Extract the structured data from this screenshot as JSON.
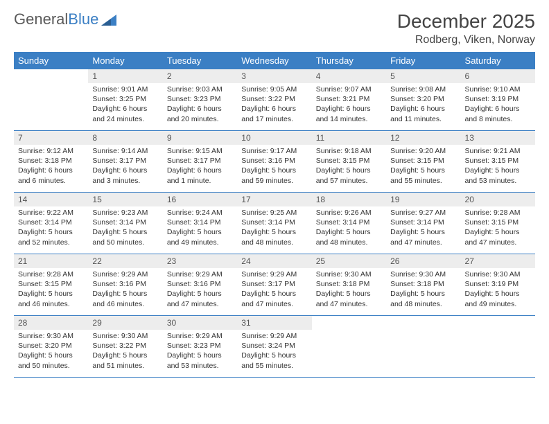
{
  "logo": {
    "text1": "General",
    "text2": "Blue"
  },
  "title": "December 2025",
  "location": "Rodberg, Viken, Norway",
  "colors": {
    "header_bg": "#3b7fc4",
    "header_text": "#ffffff",
    "daynum_bg": "#ededed",
    "border": "#3b7fc4"
  },
  "weekdays": [
    "Sunday",
    "Monday",
    "Tuesday",
    "Wednesday",
    "Thursday",
    "Friday",
    "Saturday"
  ],
  "weeks": [
    [
      {
        "n": "",
        "lines": []
      },
      {
        "n": "1",
        "lines": [
          "Sunrise: 9:01 AM",
          "Sunset: 3:25 PM",
          "Daylight: 6 hours and 24 minutes."
        ]
      },
      {
        "n": "2",
        "lines": [
          "Sunrise: 9:03 AM",
          "Sunset: 3:23 PM",
          "Daylight: 6 hours and 20 minutes."
        ]
      },
      {
        "n": "3",
        "lines": [
          "Sunrise: 9:05 AM",
          "Sunset: 3:22 PM",
          "Daylight: 6 hours and 17 minutes."
        ]
      },
      {
        "n": "4",
        "lines": [
          "Sunrise: 9:07 AM",
          "Sunset: 3:21 PM",
          "Daylight: 6 hours and 14 minutes."
        ]
      },
      {
        "n": "5",
        "lines": [
          "Sunrise: 9:08 AM",
          "Sunset: 3:20 PM",
          "Daylight: 6 hours and 11 minutes."
        ]
      },
      {
        "n": "6",
        "lines": [
          "Sunrise: 9:10 AM",
          "Sunset: 3:19 PM",
          "Daylight: 6 hours and 8 minutes."
        ]
      }
    ],
    [
      {
        "n": "7",
        "lines": [
          "Sunrise: 9:12 AM",
          "Sunset: 3:18 PM",
          "Daylight: 6 hours and 6 minutes."
        ]
      },
      {
        "n": "8",
        "lines": [
          "Sunrise: 9:14 AM",
          "Sunset: 3:17 PM",
          "Daylight: 6 hours and 3 minutes."
        ]
      },
      {
        "n": "9",
        "lines": [
          "Sunrise: 9:15 AM",
          "Sunset: 3:17 PM",
          "Daylight: 6 hours and 1 minute."
        ]
      },
      {
        "n": "10",
        "lines": [
          "Sunrise: 9:17 AM",
          "Sunset: 3:16 PM",
          "Daylight: 5 hours and 59 minutes."
        ]
      },
      {
        "n": "11",
        "lines": [
          "Sunrise: 9:18 AM",
          "Sunset: 3:15 PM",
          "Daylight: 5 hours and 57 minutes."
        ]
      },
      {
        "n": "12",
        "lines": [
          "Sunrise: 9:20 AM",
          "Sunset: 3:15 PM",
          "Daylight: 5 hours and 55 minutes."
        ]
      },
      {
        "n": "13",
        "lines": [
          "Sunrise: 9:21 AM",
          "Sunset: 3:15 PM",
          "Daylight: 5 hours and 53 minutes."
        ]
      }
    ],
    [
      {
        "n": "14",
        "lines": [
          "Sunrise: 9:22 AM",
          "Sunset: 3:14 PM",
          "Daylight: 5 hours and 52 minutes."
        ]
      },
      {
        "n": "15",
        "lines": [
          "Sunrise: 9:23 AM",
          "Sunset: 3:14 PM",
          "Daylight: 5 hours and 50 minutes."
        ]
      },
      {
        "n": "16",
        "lines": [
          "Sunrise: 9:24 AM",
          "Sunset: 3:14 PM",
          "Daylight: 5 hours and 49 minutes."
        ]
      },
      {
        "n": "17",
        "lines": [
          "Sunrise: 9:25 AM",
          "Sunset: 3:14 PM",
          "Daylight: 5 hours and 48 minutes."
        ]
      },
      {
        "n": "18",
        "lines": [
          "Sunrise: 9:26 AM",
          "Sunset: 3:14 PM",
          "Daylight: 5 hours and 48 minutes."
        ]
      },
      {
        "n": "19",
        "lines": [
          "Sunrise: 9:27 AM",
          "Sunset: 3:14 PM",
          "Daylight: 5 hours and 47 minutes."
        ]
      },
      {
        "n": "20",
        "lines": [
          "Sunrise: 9:28 AM",
          "Sunset: 3:15 PM",
          "Daylight: 5 hours and 47 minutes."
        ]
      }
    ],
    [
      {
        "n": "21",
        "lines": [
          "Sunrise: 9:28 AM",
          "Sunset: 3:15 PM",
          "Daylight: 5 hours and 46 minutes."
        ]
      },
      {
        "n": "22",
        "lines": [
          "Sunrise: 9:29 AM",
          "Sunset: 3:16 PM",
          "Daylight: 5 hours and 46 minutes."
        ]
      },
      {
        "n": "23",
        "lines": [
          "Sunrise: 9:29 AM",
          "Sunset: 3:16 PM",
          "Daylight: 5 hours and 47 minutes."
        ]
      },
      {
        "n": "24",
        "lines": [
          "Sunrise: 9:29 AM",
          "Sunset: 3:17 PM",
          "Daylight: 5 hours and 47 minutes."
        ]
      },
      {
        "n": "25",
        "lines": [
          "Sunrise: 9:30 AM",
          "Sunset: 3:18 PM",
          "Daylight: 5 hours and 47 minutes."
        ]
      },
      {
        "n": "26",
        "lines": [
          "Sunrise: 9:30 AM",
          "Sunset: 3:18 PM",
          "Daylight: 5 hours and 48 minutes."
        ]
      },
      {
        "n": "27",
        "lines": [
          "Sunrise: 9:30 AM",
          "Sunset: 3:19 PM",
          "Daylight: 5 hours and 49 minutes."
        ]
      }
    ],
    [
      {
        "n": "28",
        "lines": [
          "Sunrise: 9:30 AM",
          "Sunset: 3:20 PM",
          "Daylight: 5 hours and 50 minutes."
        ]
      },
      {
        "n": "29",
        "lines": [
          "Sunrise: 9:30 AM",
          "Sunset: 3:22 PM",
          "Daylight: 5 hours and 51 minutes."
        ]
      },
      {
        "n": "30",
        "lines": [
          "Sunrise: 9:29 AM",
          "Sunset: 3:23 PM",
          "Daylight: 5 hours and 53 minutes."
        ]
      },
      {
        "n": "31",
        "lines": [
          "Sunrise: 9:29 AM",
          "Sunset: 3:24 PM",
          "Daylight: 5 hours and 55 minutes."
        ]
      },
      {
        "n": "",
        "lines": []
      },
      {
        "n": "",
        "lines": []
      },
      {
        "n": "",
        "lines": []
      }
    ]
  ]
}
